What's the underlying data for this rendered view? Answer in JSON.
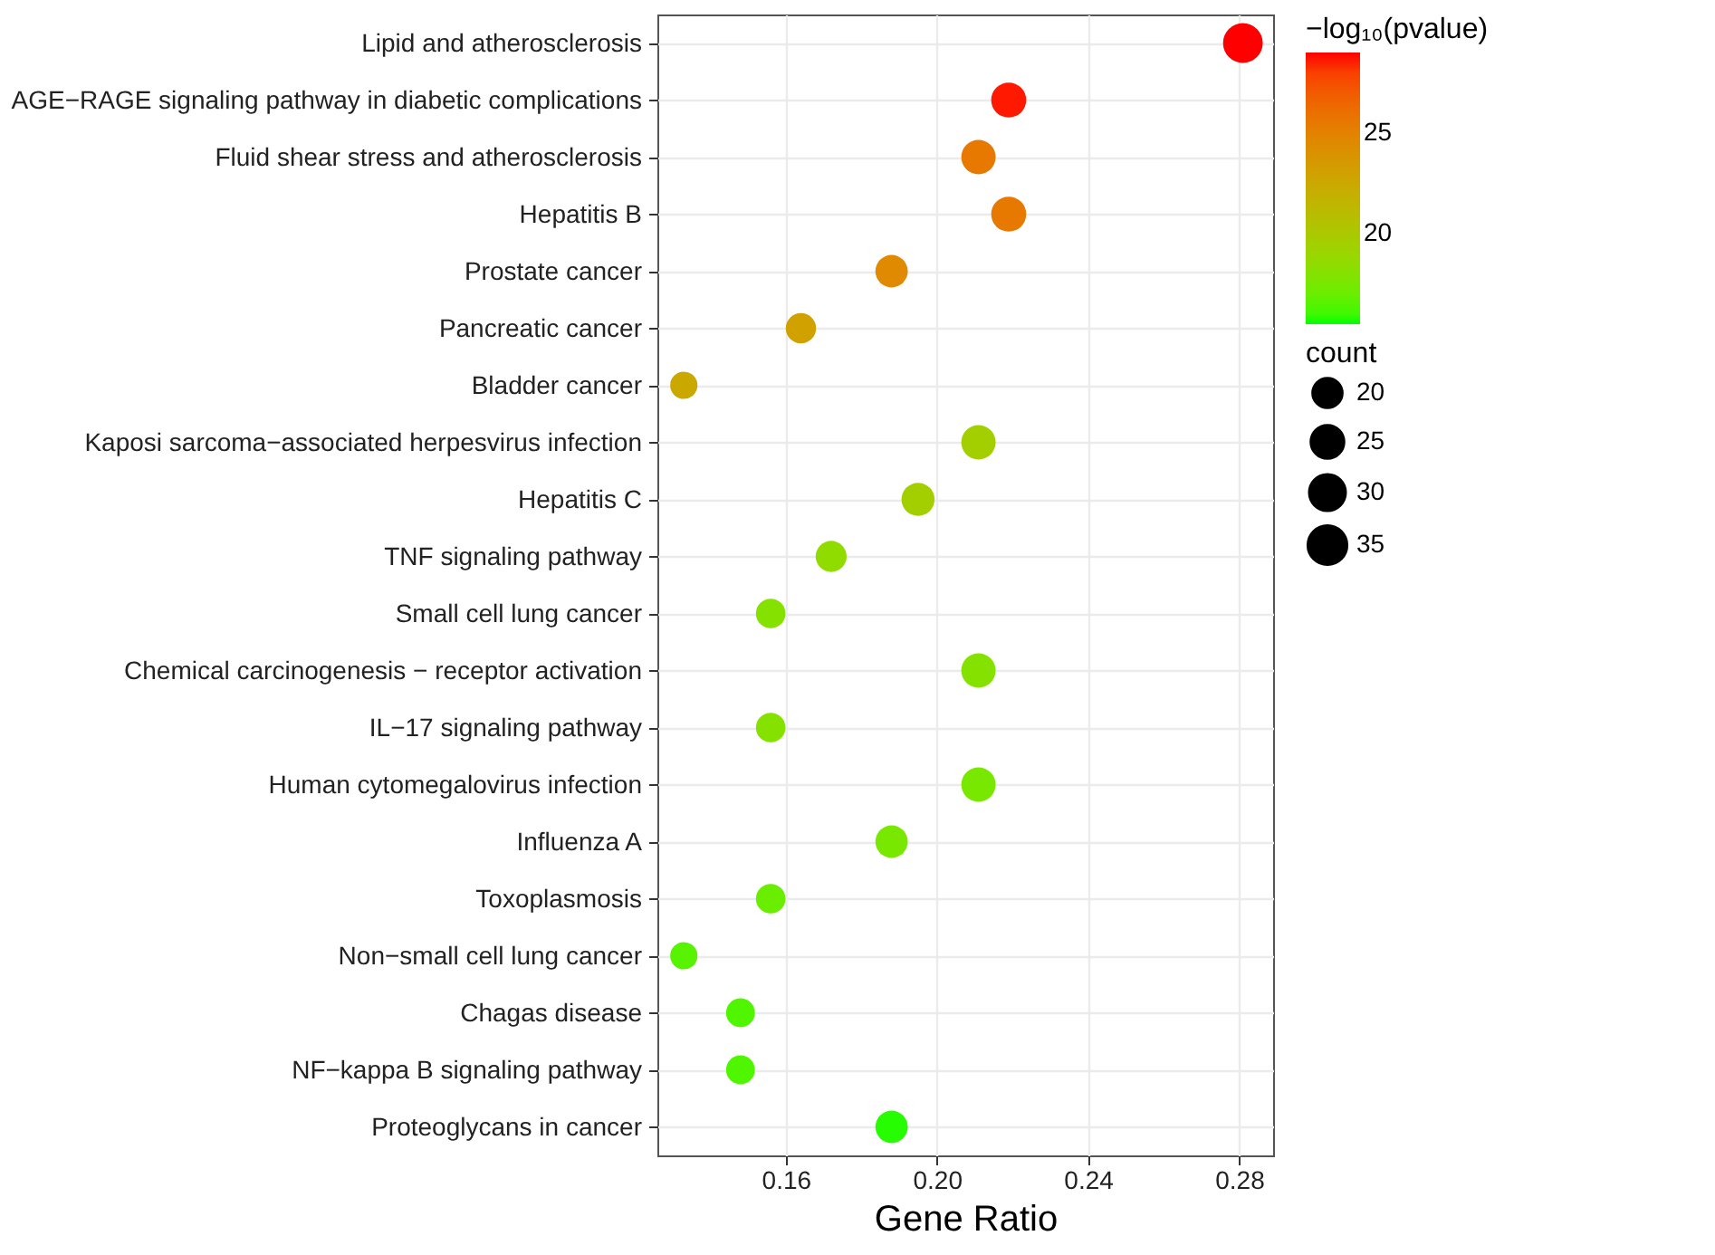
{
  "chart_data": {
    "type": "bubble",
    "xlabel": "Gene Ratio",
    "clabel": "−log₁₀(pvalue)",
    "legend_title": "count",
    "categories": [
      "Lipid and atherosclerosis",
      "AGE−RAGE signaling pathway in diabetic complications",
      "Fluid shear stress and atherosclerosis",
      "Hepatitis B",
      "Prostate cancer",
      "Pancreatic cancer",
      "Bladder cancer",
      "Kaposi sarcoma−associated herpesvirus infection",
      "Hepatitis C",
      "TNF signaling pathway",
      "Small cell lung cancer",
      "Chemical carcinogenesis − receptor activation",
      "IL−17 signaling pathway",
      "Human cytomegalovirus infection",
      "Influenza A",
      "Toxoplasmosis",
      "Non−small cell lung cancer",
      "Chagas disease",
      "NF−kappa B signaling pathway",
      "Proteoglycans in cancer"
    ],
    "values": [
      0.281,
      0.219,
      0.211,
      0.219,
      0.188,
      0.164,
      0.133,
      0.211,
      0.195,
      0.172,
      0.156,
      0.211,
      0.156,
      0.211,
      0.188,
      0.156,
      0.133,
      0.148,
      0.148,
      0.188
    ],
    "sizes": [
      36,
      28,
      27,
      28,
      24,
      21,
      17,
      27,
      25,
      22,
      20,
      27,
      20,
      27,
      24,
      20,
      17,
      19,
      19,
      24
    ],
    "size_legend": [
      20,
      25,
      30,
      35
    ],
    "cvalues": [
      29,
      28.8,
      25.5,
      25.5,
      24.5,
      23,
      22.5,
      19.5,
      19.5,
      18.5,
      18,
      18,
      18,
      17.5,
      17.5,
      17,
      16.5,
      16.3,
      16.3,
      15.7
    ],
    "clim": [
      15.5,
      29
    ],
    "cticks": [
      20,
      25
    ],
    "orientation": "horizontal",
    "xlim": [
      0.126,
      0.289
    ],
    "xticks": [
      0.16,
      {
        "value": 0.2,
        "label": "0.20"
      },
      0.24,
      0.28
    ],
    "grid": true
  }
}
